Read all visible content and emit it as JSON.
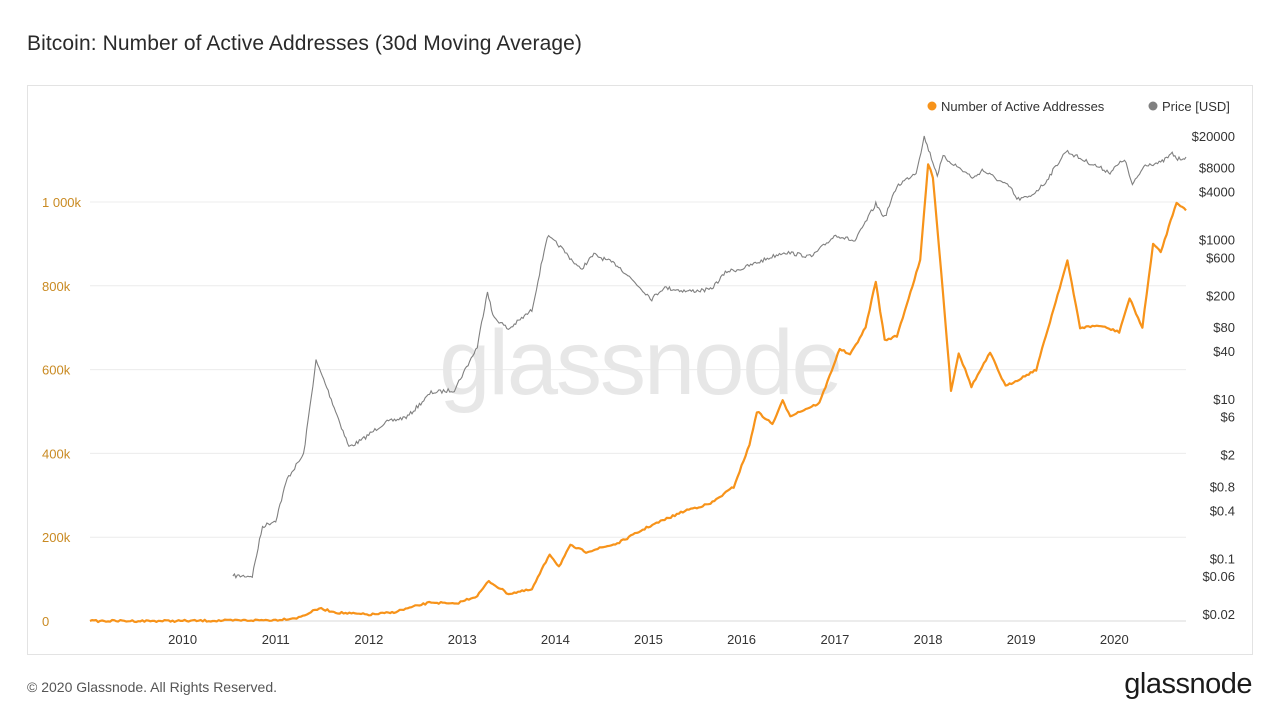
{
  "page": {
    "title": "Bitcoin: Number of Active Addresses (30d Moving Average)",
    "copyright": "© 2020 Glassnode. All Rights Reserved.",
    "logo_text": "glassnode",
    "watermark": "glassnode"
  },
  "chart_data": {
    "type": "line",
    "title": "Bitcoin: Number of Active Addresses (30d Moving Average)",
    "legend": {
      "placement": "top-right",
      "entries": [
        {
          "name": "Number of Active Addresses",
          "color": "#f7931a"
        },
        {
          "name": "Price [USD]",
          "color": "#808080"
        }
      ]
    },
    "x_axis": {
      "range": [
        "2009-01-03",
        "2020-10-08"
      ],
      "tick_labels": [
        "2010",
        "2011",
        "2012",
        "2013",
        "2014",
        "2015",
        "2016",
        "2017",
        "2018",
        "2019",
        "2020"
      ],
      "tick_years": [
        2010,
        2011,
        2012,
        2013,
        2014,
        2015,
        2016,
        2017,
        2018,
        2019,
        2020
      ]
    },
    "y_axis_left": {
      "range": [
        0,
        1000000
      ],
      "ticks": [
        0,
        200000,
        400000,
        600000,
        800000,
        1000000
      ],
      "tick_labels": [
        "0",
        "200k",
        "400k",
        "600k",
        "800k",
        "1 000k"
      ],
      "color": "#c98a22"
    },
    "y_axis_right": {
      "scale": "log",
      "range": [
        0.02,
        20000
      ],
      "ticks": [
        0.02,
        0.06,
        0.1,
        0.4,
        0.8,
        2,
        6,
        10,
        40,
        80,
        200,
        600,
        1000,
        4000,
        8000,
        20000
      ],
      "tick_labels": [
        "$0.02",
        "$0.06",
        "$0.1",
        "$0.4",
        "$0.8",
        "$2",
        "$6",
        "$10",
        "$40",
        "$80",
        "$200",
        "$600",
        "$1000",
        "$4000",
        "$8000",
        "$20000"
      ]
    },
    "grid": true,
    "series": [
      {
        "name": "Number of Active Addresses",
        "axis": "left",
        "color": "#f7931a",
        "points": [
          [
            "2009-01-03",
            0
          ],
          [
            "2010-01-01",
            200
          ],
          [
            "2010-07-01",
            1000
          ],
          [
            "2011-01-01",
            2500
          ],
          [
            "2011-04-01",
            8000
          ],
          [
            "2011-06-20",
            30000
          ],
          [
            "2011-09-01",
            20000
          ],
          [
            "2012-01-01",
            15000
          ],
          [
            "2012-04-01",
            20000
          ],
          [
            "2012-06-01",
            30000
          ],
          [
            "2012-09-01",
            45000
          ],
          [
            "2012-12-01",
            40000
          ],
          [
            "2013-03-01",
            60000
          ],
          [
            "2013-04-15",
            95000
          ],
          [
            "2013-07-01",
            65000
          ],
          [
            "2013-10-01",
            75000
          ],
          [
            "2013-12-10",
            160000
          ],
          [
            "2014-01-15",
            130000
          ],
          [
            "2014-03-01",
            180000
          ],
          [
            "2014-05-01",
            165000
          ],
          [
            "2014-09-01",
            185000
          ],
          [
            "2015-01-01",
            225000
          ],
          [
            "2015-06-01",
            265000
          ],
          [
            "2015-09-01",
            280000
          ],
          [
            "2015-12-01",
            320000
          ],
          [
            "2016-02-01",
            420000
          ],
          [
            "2016-03-01",
            500000
          ],
          [
            "2016-05-01",
            470000
          ],
          [
            "2016-06-10",
            525000
          ],
          [
            "2016-07-10",
            490000
          ],
          [
            "2016-11-01",
            520000
          ],
          [
            "2017-01-20",
            650000
          ],
          [
            "2017-03-01",
            635000
          ],
          [
            "2017-05-01",
            700000
          ],
          [
            "2017-06-10",
            810000
          ],
          [
            "2017-07-15",
            670000
          ],
          [
            "2017-09-01",
            680000
          ],
          [
            "2017-12-01",
            860000
          ],
          [
            "2018-01-01",
            1090000
          ],
          [
            "2018-01-20",
            1060000
          ],
          [
            "2018-03-01",
            780000
          ],
          [
            "2018-04-01",
            550000
          ],
          [
            "2018-05-01",
            640000
          ],
          [
            "2018-06-20",
            560000
          ],
          [
            "2018-09-01",
            640000
          ],
          [
            "2018-11-01",
            560000
          ],
          [
            "2019-01-01",
            580000
          ],
          [
            "2019-03-01",
            600000
          ],
          [
            "2019-07-01",
            860000
          ],
          [
            "2019-08-20",
            700000
          ],
          [
            "2019-11-01",
            705000
          ],
          [
            "2020-01-20",
            690000
          ],
          [
            "2020-03-01",
            770000
          ],
          [
            "2020-04-20",
            700000
          ],
          [
            "2020-06-01",
            900000
          ],
          [
            "2020-07-01",
            880000
          ],
          [
            "2020-09-01",
            1000000
          ],
          [
            "2020-10-08",
            980000
          ]
        ]
      },
      {
        "name": "Price [USD]",
        "axis": "right",
        "color": "#808080",
        "points": [
          [
            "2010-07-17",
            0.06
          ],
          [
            "2010-10-01",
            0.06
          ],
          [
            "2010-11-10",
            0.25
          ],
          [
            "2011-01-01",
            0.3
          ],
          [
            "2011-02-15",
            1.0
          ],
          [
            "2011-04-20",
            2.0
          ],
          [
            "2011-06-08",
            30
          ],
          [
            "2011-07-20",
            14
          ],
          [
            "2011-10-15",
            2.5
          ],
          [
            "2011-12-01",
            3.0
          ],
          [
            "2012-03-01",
            5.0
          ],
          [
            "2012-06-01",
            6.0
          ],
          [
            "2012-09-01",
            12
          ],
          [
            "2012-12-01",
            13
          ],
          [
            "2013-03-01",
            45
          ],
          [
            "2013-04-10",
            230
          ],
          [
            "2013-05-01",
            110
          ],
          [
            "2013-07-01",
            75
          ],
          [
            "2013-10-01",
            130
          ],
          [
            "2013-11-30",
            1100
          ],
          [
            "2014-01-15",
            850
          ],
          [
            "2014-04-10",
            420
          ],
          [
            "2014-06-01",
            650
          ],
          [
            "2014-09-01",
            480
          ],
          [
            "2015-01-14",
            180
          ],
          [
            "2015-03-01",
            250
          ],
          [
            "2015-06-01",
            225
          ],
          [
            "2015-09-01",
            235
          ],
          [
            "2015-11-04",
            400
          ],
          [
            "2016-01-01",
            430
          ],
          [
            "2016-06-15",
            700
          ],
          [
            "2016-10-01",
            610
          ],
          [
            "2017-01-04",
            1150
          ],
          [
            "2017-03-20",
            950
          ],
          [
            "2017-06-10",
            2800
          ],
          [
            "2017-07-15",
            1900
          ],
          [
            "2017-09-01",
            4700
          ],
          [
            "2017-11-15",
            7000
          ],
          [
            "2017-12-17",
            19500
          ],
          [
            "2018-02-06",
            6500
          ],
          [
            "2018-03-01",
            11000
          ],
          [
            "2018-06-29",
            5900
          ],
          [
            "2018-08-01",
            7500
          ],
          [
            "2018-11-20",
            4500
          ],
          [
            "2018-12-15",
            3200
          ],
          [
            "2019-02-01",
            3400
          ],
          [
            "2019-04-01",
            5000
          ],
          [
            "2019-06-26",
            13000
          ],
          [
            "2019-09-01",
            10000
          ],
          [
            "2019-12-15",
            7000
          ],
          [
            "2020-02-10",
            10300
          ],
          [
            "2020-03-12",
            4800
          ],
          [
            "2020-05-01",
            8800
          ],
          [
            "2020-07-01",
            9200
          ],
          [
            "2020-08-15",
            12000
          ],
          [
            "2020-09-05",
            10200
          ],
          [
            "2020-10-08",
            10900
          ]
        ]
      }
    ]
  }
}
